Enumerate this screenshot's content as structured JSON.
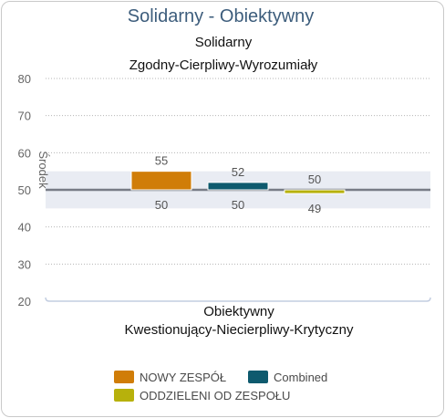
{
  "chart_data": {
    "type": "bar",
    "title": "Solidarny - Obiektywny",
    "top_label_line1": "Solidarny",
    "top_label_line2": "Zgodny-Cierpliwy-Wyrozumiały",
    "bottom_label_line1": "Obiektywny",
    "bottom_label_line2": "Kwestionujący-Niecierpliwy-Krytyczny",
    "center_label": "Środek",
    "center_value": 50,
    "center_band": [
      45,
      55
    ],
    "ylim": [
      20,
      80
    ],
    "yticks": [
      20,
      30,
      40,
      50,
      60,
      70,
      80
    ],
    "grid": true,
    "legend_position": "bottom",
    "series": [
      {
        "name": "NOWY ZESPÓŁ",
        "start": 50,
        "end": 55,
        "color": "#d07d08"
      },
      {
        "name": "Combined",
        "start": 50,
        "end": 52,
        "color": "#0e5a6e"
      },
      {
        "name": "ODDZIELENI OD ZESPOŁU",
        "start": 49,
        "end": 50,
        "color": "#b7b10c"
      }
    ]
  }
}
